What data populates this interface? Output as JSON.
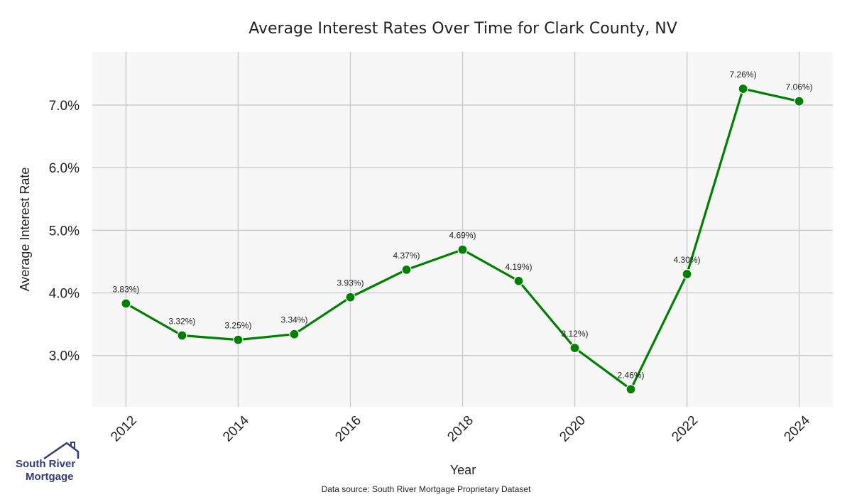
{
  "chart_data": {
    "type": "line",
    "title": "Average Interest Rates Over Time for Clark County, NV",
    "xlabel": "Year",
    "ylabel": "Average Interest Rate",
    "x": [
      2012,
      2013,
      2014,
      2015,
      2016,
      2017,
      2018,
      2019,
      2020,
      2021,
      2022,
      2023,
      2024
    ],
    "series": [
      {
        "values": [
          3.83,
          3.32,
          3.25,
          3.34,
          3.93,
          4.37,
          4.69,
          4.19,
          3.12,
          2.46,
          4.3,
          7.26,
          7.06
        ],
        "labels": [
          "3.83%)",
          "3.32%)",
          "3.25%)",
          "3.34%)",
          "3.93%)",
          "4.37%)",
          "4.69%)",
          "4.19%)",
          "3.12%)",
          "2.46%)",
          "4.30%)",
          "7.26%)",
          "7.06%)"
        ],
        "color": "#008000"
      }
    ],
    "xticks": [
      "2012",
      "2014",
      "2016",
      "2018",
      "2020",
      "2022",
      "2024"
    ],
    "yticks": [
      {
        "value": 3.0,
        "label": "3.0%"
      },
      {
        "value": 4.0,
        "label": "4.0%"
      },
      {
        "value": 5.0,
        "label": "5.0%"
      },
      {
        "value": 6.0,
        "label": "6.0%"
      },
      {
        "value": 7.0,
        "label": "7.0%"
      }
    ],
    "xlim": [
      2011.4,
      2024.6
    ],
    "ylim": [
      2.18,
      7.85
    ],
    "grid": true,
    "plot_background": "#f7f7f7",
    "grid_color": "#cccccc"
  },
  "source": "Data source: South River Mortgage Proprietary Dataset",
  "logo": {
    "line1": "South River",
    "line2": "Mortgage",
    "color": "#2d3d7a"
  }
}
